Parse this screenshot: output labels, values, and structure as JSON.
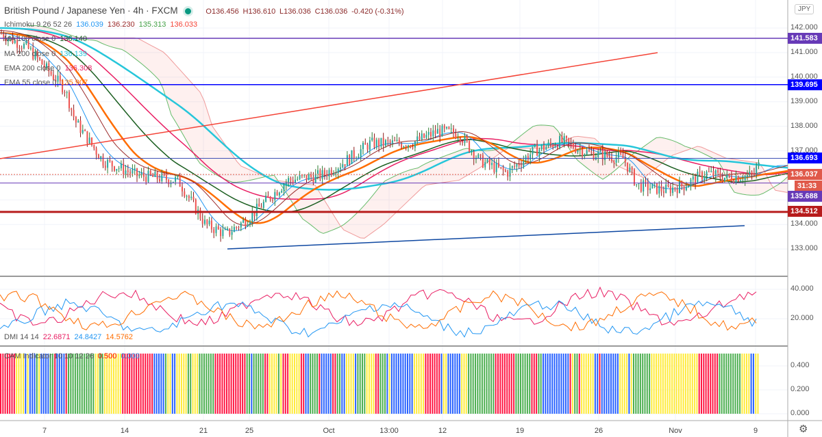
{
  "header": {
    "symbol": "British Pound / Japanese Yen · 4h · FXCM",
    "open": "O136.456",
    "high": "H136.610",
    "low": "L136.036",
    "close": "C136.036",
    "change": "-0.420 (-0.31%)",
    "market_status_color": "#089981"
  },
  "indicators": [
    {
      "name": "Ichimoku 9 26 52 26",
      "values": [
        {
          "v": "136.039",
          "c": "#2196f3"
        },
        {
          "v": "136.230",
          "c": "#9b2a2a"
        },
        {
          "v": "135.313",
          "c": "#43a047"
        },
        {
          "v": "136.033",
          "c": "#f44336"
        }
      ]
    },
    {
      "name": "MA 100 close 0",
      "values": [
        {
          "v": "136.140",
          "c": "#1b5e20"
        }
      ]
    },
    {
      "name": "MA 200 close 0",
      "values": [
        {
          "v": "136.139",
          "c": "#26c6da"
        }
      ]
    },
    {
      "name": "EMA 200 close 0",
      "values": [
        {
          "v": "136.308",
          "c": "#e91e63"
        }
      ]
    },
    {
      "name": "EMA 55 close 0",
      "values": [
        {
          "v": "135.907",
          "c": "#ff6d00"
        }
      ]
    }
  ],
  "dmi": {
    "name": "DMI 14 14",
    "values": [
      {
        "v": "22.6871",
        "c": "#e91e63"
      },
      {
        "v": "24.8427",
        "c": "#2196f3"
      },
      {
        "v": "14.5762",
        "c": "#ff6d00"
      }
    ],
    "ticks": [
      "40.000",
      "20.000"
    ]
  },
  "cam": {
    "name": "CAM Indicator 10 10 12 26",
    "values": [
      {
        "v": "0.500",
        "c": "#ff0000"
      },
      {
        "v": "0.000",
        "c": "#2196f3"
      }
    ],
    "ticks": [
      "0.400",
      "0.200",
      "0.000"
    ]
  },
  "price_axis": {
    "currency": "JPY",
    "ticks": [
      "142.000",
      "141.000",
      "140.000",
      "139.000",
      "138.000",
      "137.000",
      "134.000",
      "133.000"
    ]
  },
  "price_labels": [
    {
      "v": "141.583",
      "c": "#673ab7"
    },
    {
      "v": "139.695",
      "c": "#0000ff"
    },
    {
      "v": "136.693",
      "c": "#0000ff"
    },
    {
      "v": "136.037",
      "c": "#e0594a"
    },
    {
      "v": "31:33",
      "c": "#e0594a"
    },
    {
      "v": "135.688",
      "c": "#673ab7"
    },
    {
      "v": "134.512",
      "c": "#b71c1c"
    }
  ],
  "time_axis": [
    "7",
    "14",
    "21",
    "25",
    "Oct",
    "13:00",
    "12",
    "19",
    "26",
    "Nov",
    "9"
  ]
}
